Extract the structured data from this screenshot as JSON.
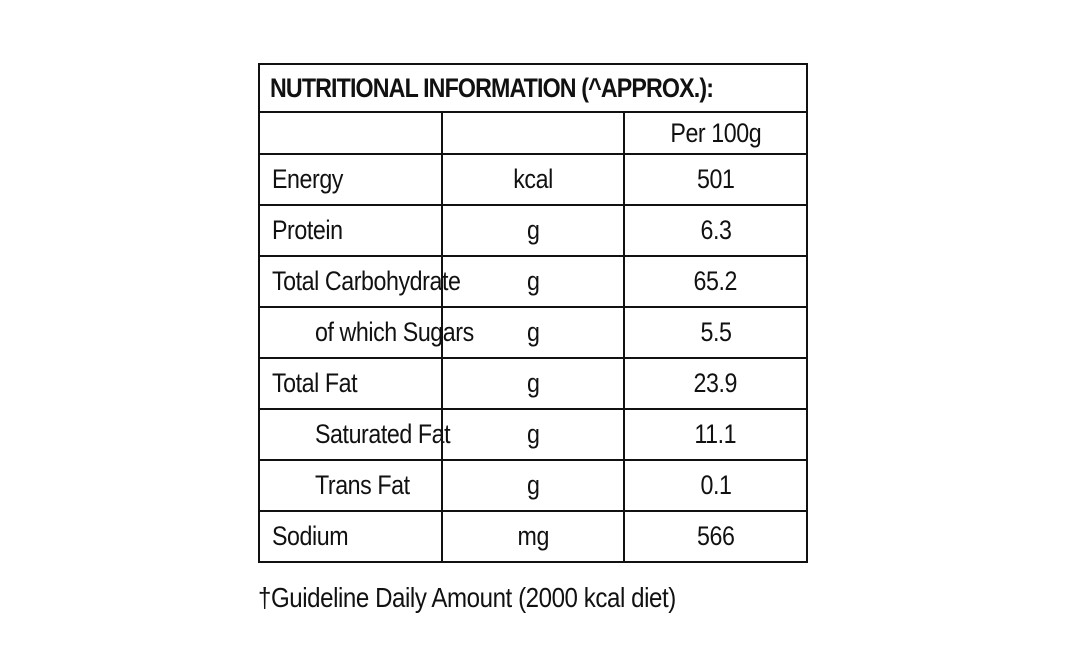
{
  "title": "NUTRITIONAL INFORMATION (^APPROX.):",
  "header": {
    "name": "",
    "unit": "",
    "per": "Per 100g"
  },
  "rows": [
    {
      "name": "Energy",
      "unit": "kcal",
      "value": "501",
      "indent": false
    },
    {
      "name": "Protein",
      "unit": "g",
      "value": "6.3",
      "indent": false
    },
    {
      "name": "Total Carbohydrate",
      "unit": "g",
      "value": "65.2",
      "indent": false
    },
    {
      "name": "of which Sugars",
      "unit": "g",
      "value": "5.5",
      "indent": true
    },
    {
      "name": "Total Fat",
      "unit": "g",
      "value": "23.9",
      "indent": false
    },
    {
      "name": "Saturated Fat",
      "unit": "g",
      "value": "11.1",
      "indent": true
    },
    {
      "name": "Trans Fat",
      "unit": "g",
      "value": "0.1",
      "indent": true
    },
    {
      "name": "Sodium",
      "unit": "mg",
      "value": "566",
      "indent": false
    }
  ],
  "footnote": "†Guideline Daily Amount (2000 kcal diet)"
}
